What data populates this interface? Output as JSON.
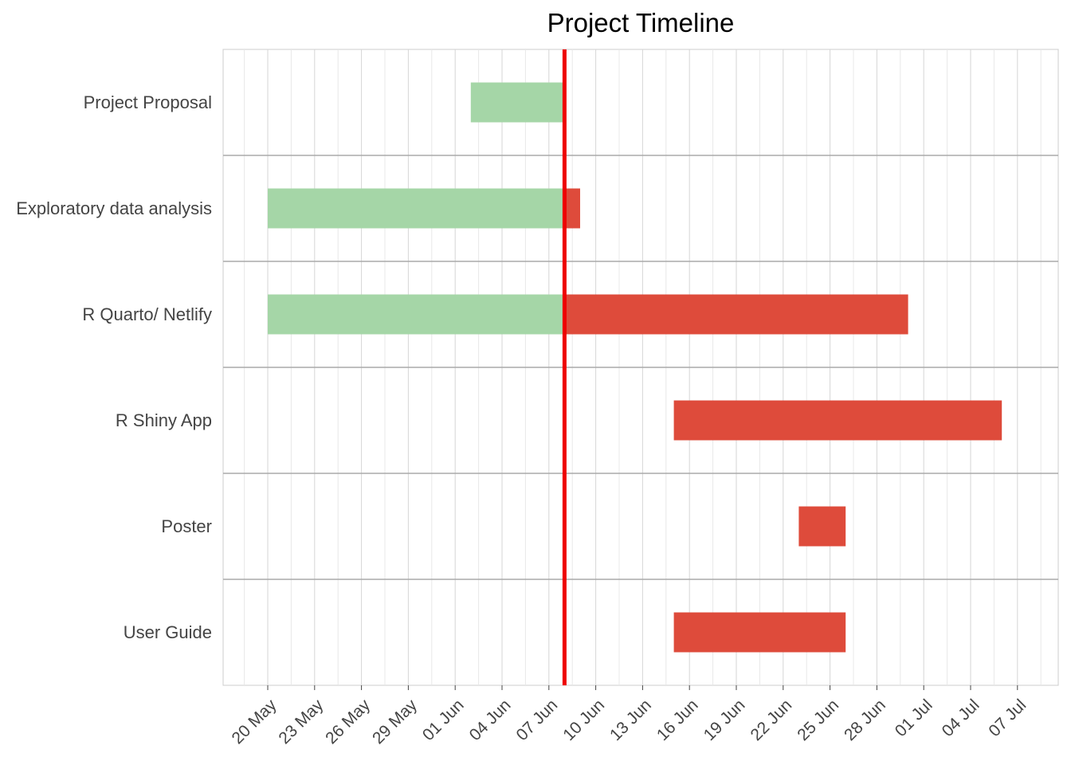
{
  "chart_data": {
    "type": "gantt",
    "title": "Project Timeline",
    "xlabel": "",
    "ylabel": "",
    "x_axis": {
      "type": "date",
      "range": [
        "2023-05-16",
        "2023-07-10"
      ],
      "ticks": [
        {
          "date": "2023-05-20",
          "label": "20 May"
        },
        {
          "date": "2023-05-23",
          "label": "23 May"
        },
        {
          "date": "2023-05-26",
          "label": "26 May"
        },
        {
          "date": "2023-05-29",
          "label": "29 May"
        },
        {
          "date": "2023-06-01",
          "label": "01 Jun"
        },
        {
          "date": "2023-06-04",
          "label": "04 Jun"
        },
        {
          "date": "2023-06-07",
          "label": "07 Jun"
        },
        {
          "date": "2023-06-10",
          "label": "10 Jun"
        },
        {
          "date": "2023-06-13",
          "label": "13 Jun"
        },
        {
          "date": "2023-06-16",
          "label": "16 Jun"
        },
        {
          "date": "2023-06-19",
          "label": "19 Jun"
        },
        {
          "date": "2023-06-22",
          "label": "22 Jun"
        },
        {
          "date": "2023-06-25",
          "label": "25 Jun"
        },
        {
          "date": "2023-06-28",
          "label": "28 Jun"
        },
        {
          "date": "2023-07-01",
          "label": "01 Jul"
        },
        {
          "date": "2023-07-04",
          "label": "04 Jul"
        },
        {
          "date": "2023-07-07",
          "label": "07 Jul"
        }
      ],
      "minor_grid": true,
      "tick_label_rotation_deg": -45
    },
    "categories": [
      "Project Proposal",
      "Exploratory data analysis",
      "R Quarto/ Netlify",
      "R Shiny App",
      "Poster",
      "User Guide"
    ],
    "today": "2023-06-08",
    "today_line_color": "#ee0000",
    "status_colors": {
      "completed": "#a5d6a7",
      "remaining": "#de4b3b"
    },
    "tasks": [
      {
        "name": "Project Proposal",
        "start": "2023-06-02",
        "end": "2023-06-08",
        "segments": [
          {
            "status": "completed",
            "start": "2023-06-02",
            "end": "2023-06-08"
          }
        ]
      },
      {
        "name": "Exploratory data analysis",
        "start": "2023-05-20",
        "end": "2023-06-09",
        "segments": [
          {
            "status": "completed",
            "start": "2023-05-20",
            "end": "2023-06-08"
          },
          {
            "status": "remaining",
            "start": "2023-06-08",
            "end": "2023-06-09"
          }
        ]
      },
      {
        "name": "R Quarto/ Netlify",
        "start": "2023-05-20",
        "end": "2023-06-30",
        "segments": [
          {
            "status": "completed",
            "start": "2023-05-20",
            "end": "2023-06-08"
          },
          {
            "status": "remaining",
            "start": "2023-06-08",
            "end": "2023-06-30"
          }
        ]
      },
      {
        "name": "R Shiny App",
        "start": "2023-06-15",
        "end": "2023-07-06",
        "segments": [
          {
            "status": "remaining",
            "start": "2023-06-15",
            "end": "2023-07-06"
          }
        ]
      },
      {
        "name": "Poster",
        "start": "2023-06-23",
        "end": "2023-06-26",
        "segments": [
          {
            "status": "remaining",
            "start": "2023-06-23",
            "end": "2023-06-26"
          }
        ]
      },
      {
        "name": "User Guide",
        "start": "2023-06-15",
        "end": "2023-06-26",
        "segments": [
          {
            "status": "remaining",
            "start": "2023-06-15",
            "end": "2023-06-26"
          }
        ]
      }
    ]
  }
}
